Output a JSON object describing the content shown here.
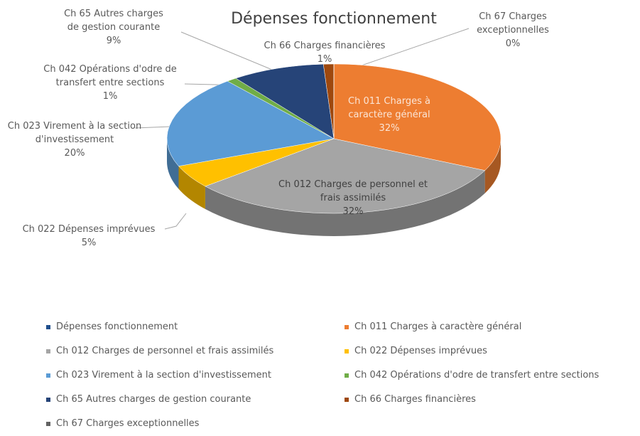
{
  "chart_data": {
    "type": "pie",
    "title": "Dépenses fonctionnement",
    "categories": [
      "Ch 011 Charges à caractère général",
      "Ch 012 Charges de personnel et frais assimilés",
      "Ch 022 Dépenses imprévues",
      "Ch 023 Virement à la section d'investissement",
      "Ch 042 Opérations d'odre de transfert entre sections",
      "Ch 65 Autres charges de gestion courante",
      "Ch 66 Charges financières",
      "Ch 67 Charges exceptionnelles"
    ],
    "values": [
      32,
      32,
      5,
      20,
      1,
      9,
      1,
      0
    ],
    "value_labels": [
      "32%",
      "32%",
      "5%",
      "20%",
      "1%",
      "9%",
      "1%",
      "0%"
    ],
    "colors": [
      "#ed7d31",
      "#a5a5a5",
      "#ffc000",
      "#5b9bd5",
      "#70ad47",
      "#264478",
      "#9e480e",
      "#636363"
    ]
  }
}
